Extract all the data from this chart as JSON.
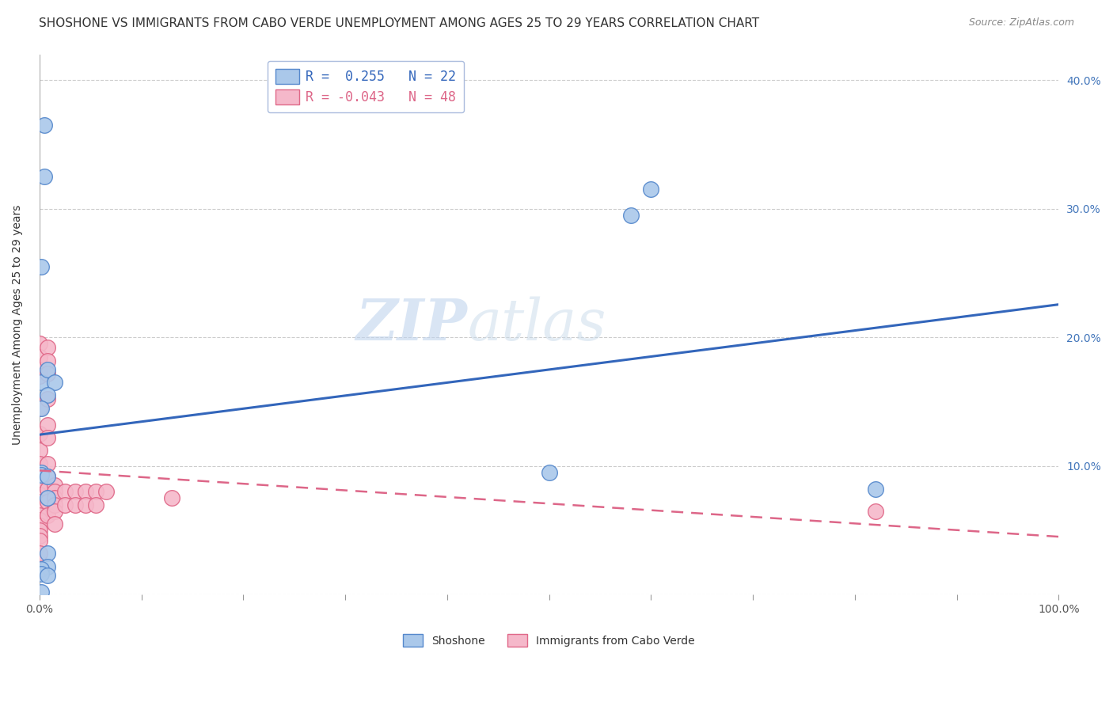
{
  "title": "SHOSHONE VS IMMIGRANTS FROM CABO VERDE UNEMPLOYMENT AMONG AGES 25 TO 29 YEARS CORRELATION CHART",
  "source": "Source: ZipAtlas.com",
  "ylabel": "Unemployment Among Ages 25 to 29 years",
  "xlim": [
    0,
    1.0
  ],
  "ylim": [
    0,
    0.42
  ],
  "xticks": [
    0.0,
    0.1,
    0.2,
    0.3,
    0.4,
    0.5,
    0.6,
    0.7,
    0.8,
    0.9,
    1.0
  ],
  "xticklabels": [
    "0.0%",
    "",
    "",
    "",
    "",
    "",
    "",
    "",
    "",
    "",
    "100.0%"
  ],
  "yticks_right": [
    0.0,
    0.1,
    0.2,
    0.3,
    0.4
  ],
  "yticklabels_right": [
    "",
    "10.0%",
    "20.0%",
    "30.0%",
    "40.0%"
  ],
  "background_color": "#ffffff",
  "grid_color": "#cccccc",
  "shoshone_x": [
    0.005,
    0.005,
    0.002,
    0.002,
    0.008,
    0.015,
    0.008,
    0.002,
    0.002,
    0.002,
    0.008,
    0.008,
    0.5,
    0.6,
    0.58,
    0.82,
    0.008,
    0.008,
    0.002,
    0.002,
    0.008,
    0.002
  ],
  "shoshone_y": [
    0.365,
    0.325,
    0.255,
    0.165,
    0.175,
    0.165,
    0.155,
    0.145,
    0.095,
    0.093,
    0.092,
    0.075,
    0.095,
    0.315,
    0.295,
    0.082,
    0.032,
    0.022,
    0.02,
    0.016,
    0.015,
    0.002
  ],
  "caboverde_x": [
    0.0,
    0.0,
    0.0,
    0.0,
    0.0,
    0.0,
    0.0,
    0.0,
    0.0,
    0.0,
    0.0,
    0.0,
    0.0,
    0.0,
    0.0,
    0.0,
    0.0,
    0.0,
    0.0,
    0.0,
    0.008,
    0.008,
    0.008,
    0.008,
    0.008,
    0.008,
    0.008,
    0.008,
    0.008,
    0.008,
    0.008,
    0.015,
    0.015,
    0.015,
    0.015,
    0.015,
    0.015,
    0.025,
    0.025,
    0.035,
    0.035,
    0.045,
    0.045,
    0.055,
    0.055,
    0.065,
    0.13,
    0.82
  ],
  "caboverde_y": [
    0.195,
    0.185,
    0.175,
    0.17,
    0.145,
    0.125,
    0.112,
    0.102,
    0.092,
    0.082,
    0.078,
    0.072,
    0.068,
    0.062,
    0.058,
    0.054,
    0.05,
    0.046,
    0.042,
    0.032,
    0.192,
    0.182,
    0.172,
    0.152,
    0.132,
    0.122,
    0.102,
    0.092,
    0.082,
    0.072,
    0.062,
    0.085,
    0.08,
    0.075,
    0.07,
    0.065,
    0.055,
    0.08,
    0.07,
    0.08,
    0.07,
    0.08,
    0.07,
    0.08,
    0.07,
    0.08,
    0.075,
    0.065
  ],
  "shoshone_color": "#aac8ea",
  "shoshone_edge_color": "#5588cc",
  "caboverde_color": "#f5b8ca",
  "caboverde_edge_color": "#e06888",
  "shoshone_R": 0.255,
  "shoshone_N": 22,
  "caboverde_R": -0.043,
  "caboverde_N": 48,
  "blue_line_color": "#3366bb",
  "pink_line_color": "#dd6688",
  "title_fontsize": 11,
  "source_fontsize": 9,
  "axis_label_fontsize": 10,
  "tick_fontsize": 10,
  "legend_fontsize": 12,
  "watermark_zip_color": "#c5d8f0",
  "watermark_atlas_color": "#c8d8e8"
}
